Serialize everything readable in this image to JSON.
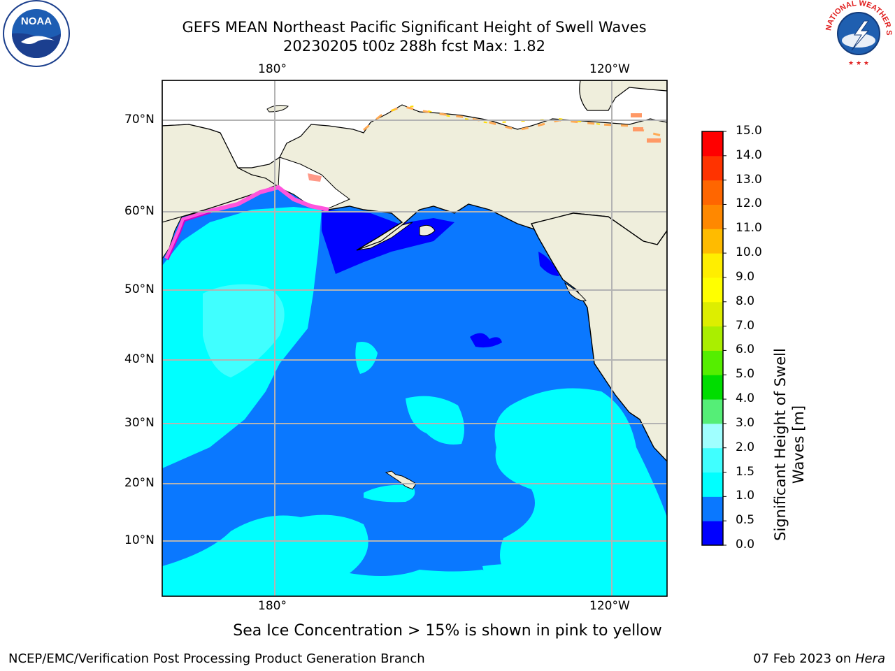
{
  "title_line1": "GEFS MEAN Northeast Pacific Significant Height of Swell Waves",
  "title_line2": "20230205 t00z 288h fcst   Max: 1.82",
  "logos": {
    "left": "NOAA",
    "right": "NATIONAL WEATHER SERVICE"
  },
  "map": {
    "lon_labels": [
      "180°",
      "120°W"
    ],
    "lat_labels": [
      "70°N",
      "60°N",
      "50°N",
      "40°N",
      "30°N",
      "20°N",
      "10°N"
    ]
  },
  "colorbar": {
    "title": "Significant Height of Swell Waves [m]",
    "ticks": [
      "0.0",
      "0.5",
      "1.0",
      "1.5",
      "2.0",
      "3.0",
      "4.0",
      "5.0",
      "6.0",
      "7.0",
      "8.0",
      "9.0",
      "10.0",
      "11.0",
      "12.0",
      "13.0",
      "14.0",
      "15.0"
    ],
    "colors": [
      "#0000ff",
      "#0a78ff",
      "#00ffff",
      "#40ffff",
      "#a0ffff",
      "#55ee77",
      "#00dd00",
      "#55ee00",
      "#aaee00",
      "#ddee00",
      "#ffff00",
      "#ffee00",
      "#ffbb00",
      "#ff8800",
      "#ff6600",
      "#ff3300",
      "#ff0000"
    ]
  },
  "caption": "Sea Ice Concentration > 15% is shown in pink to yellow",
  "footer_left": "NCEP/EMC/Verification Post Processing Product Generation Branch",
  "footer_right_date": "07 Feb 2023 on ",
  "footer_right_machine": "Hera"
}
